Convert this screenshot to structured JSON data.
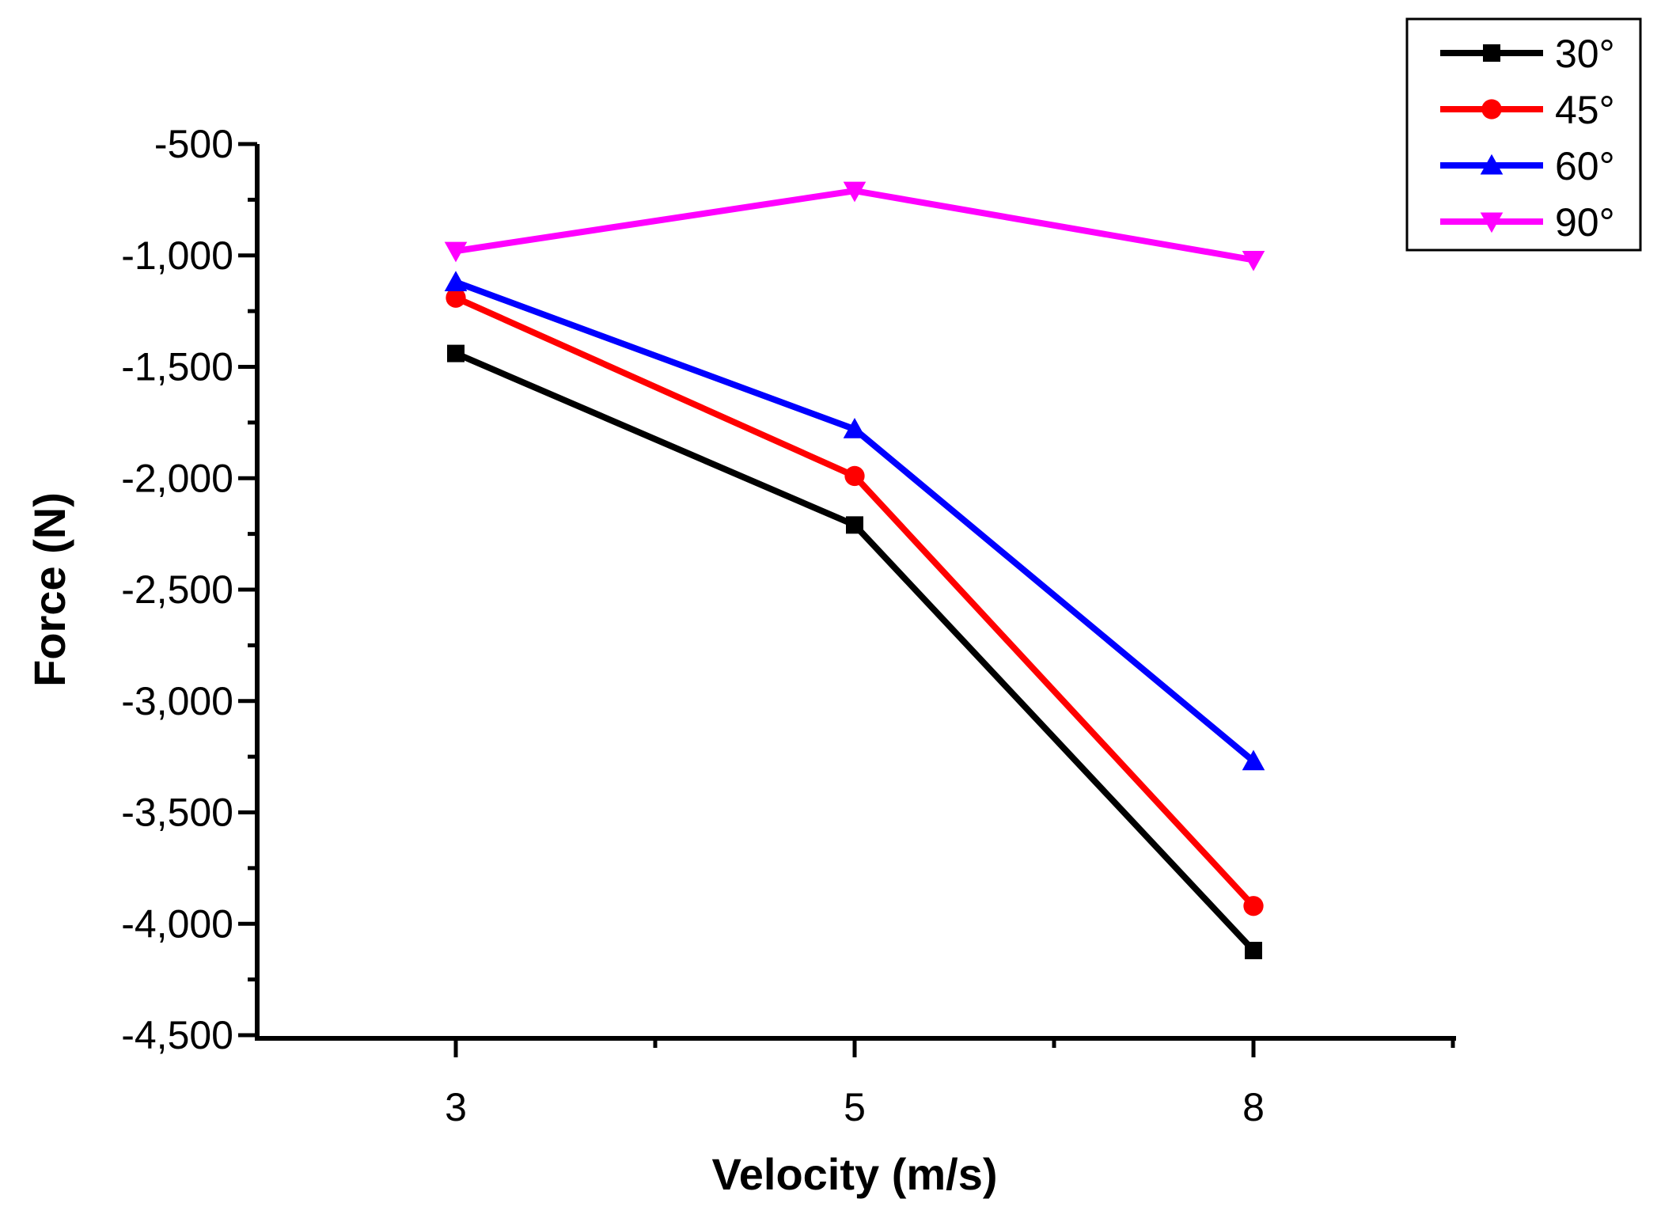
{
  "chart_data": {
    "type": "line",
    "title": "",
    "xlabel": "Velocity (m/s)",
    "ylabel": "Force (N)",
    "categories": [
      "3",
      "5",
      "8"
    ],
    "ylim": [
      -4500,
      -500
    ],
    "yticks": [
      -500,
      -1000,
      -1500,
      -2000,
      -2500,
      -3000,
      -3500,
      -4000,
      -4500
    ],
    "ytick_labels": [
      "-500",
      "-1,000",
      "-1,500",
      "-2,000",
      "-2,500",
      "-3,000",
      "-3,500",
      "-4,000",
      "-4,500"
    ],
    "grid": false,
    "legend_position": "top-right",
    "series": [
      {
        "name": "30°",
        "color": "#000000",
        "marker": "square",
        "values": [
          -1440,
          -2210,
          -4120
        ]
      },
      {
        "name": "45°",
        "color": "#ff0000",
        "marker": "circle",
        "values": [
          -1190,
          -1990,
          -3920
        ]
      },
      {
        "name": "60°",
        "color": "#0000ff",
        "marker": "triangle-up",
        "values": [
          -1120,
          -1780,
          -3270
        ]
      },
      {
        "name": "90°",
        "color": "#ff00ff",
        "marker": "triangle-down",
        "values": [
          -980,
          -710,
          -1020
        ]
      }
    ]
  }
}
